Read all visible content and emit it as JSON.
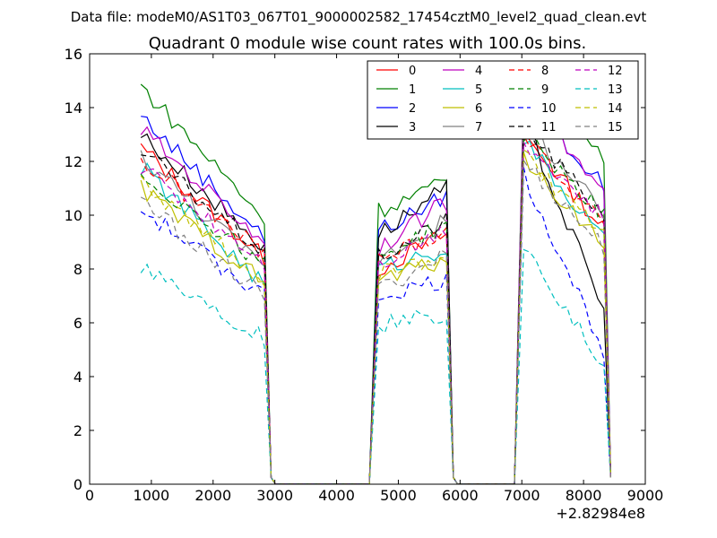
{
  "chart_data": {
    "type": "line",
    "suptitle": "Data file: modeM0/AS1T03_067T01_9000002582_17454cztM0_level2_quad_clean.evt",
    "title": "Quadrant 0 module wise count rates with 100.0s bins.",
    "xlabel": "",
    "ylabel": "",
    "x_offset_label": "+2.82984e8",
    "xlim": [
      0,
      9000
    ],
    "ylim": [
      0,
      16
    ],
    "x_ticks": [
      "0",
      "1000",
      "2000",
      "3000",
      "4000",
      "5000",
      "6000",
      "7000",
      "8000",
      "9000"
    ],
    "y_ticks": [
      "0",
      "2",
      "4",
      "6",
      "8",
      "10",
      "12",
      "14",
      "16"
    ],
    "grid": false,
    "legend_position": "top-right",
    "legend_columns": 4,
    "series": [
      {
        "name": "0",
        "color": "#ff0000",
        "dash": "solid",
        "segs": [
          {
            "x0": 830,
            "x1": 2830,
            "a": 12.5,
            "b": 8.4
          },
          {
            "x0": 4680,
            "x1": 5780,
            "a": 8.0,
            "b": 9.3
          },
          {
            "x0": 7030,
            "x1": 8330,
            "a": 13.0,
            "b": 9.5
          }
        ]
      },
      {
        "name": "1",
        "color": "#008000",
        "dash": "solid",
        "segs": [
          {
            "x0": 830,
            "x1": 2830,
            "a": 14.8,
            "b": 9.9
          },
          {
            "x0": 4680,
            "x1": 5780,
            "a": 10.2,
            "b": 11.2
          },
          {
            "x0": 7030,
            "x1": 8330,
            "a": 15.0,
            "b": 12.2
          }
        ]
      },
      {
        "name": "2",
        "color": "#0000ff",
        "dash": "solid",
        "segs": [
          {
            "x0": 830,
            "x1": 2830,
            "a": 13.7,
            "b": 9.2
          },
          {
            "x0": 4680,
            "x1": 5780,
            "a": 9.4,
            "b": 10.7
          },
          {
            "x0": 7030,
            "x1": 8330,
            "a": 14.5,
            "b": 11.0
          }
        ]
      },
      {
        "name": "3",
        "color": "#000000",
        "dash": "solid",
        "segs": [
          {
            "x0": 830,
            "x1": 2830,
            "a": 13.0,
            "b": 8.8
          },
          {
            "x0": 4680,
            "x1": 5780,
            "a": 9.3,
            "b": 11.0
          },
          {
            "x0": 7030,
            "x1": 8330,
            "a": 13.5,
            "b": 6.5
          }
        ]
      },
      {
        "name": "4",
        "color": "#bf00bf",
        "dash": "solid",
        "segs": [
          {
            "x0": 830,
            "x1": 2830,
            "a": 13.2,
            "b": 9.0
          },
          {
            "x0": 4680,
            "x1": 5780,
            "a": 8.8,
            "b": 10.5
          },
          {
            "x0": 7030,
            "x1": 8330,
            "a": 14.5,
            "b": 10.8
          }
        ]
      },
      {
        "name": "5",
        "color": "#00bfbf",
        "dash": "solid",
        "segs": [
          {
            "x0": 830,
            "x1": 2830,
            "a": 11.8,
            "b": 7.4
          },
          {
            "x0": 4680,
            "x1": 5780,
            "a": 8.0,
            "b": 8.8
          },
          {
            "x0": 7030,
            "x1": 8330,
            "a": 12.8,
            "b": 9.0
          }
        ]
      },
      {
        "name": "6",
        "color": "#bfbf00",
        "dash": "solid",
        "segs": [
          {
            "x0": 830,
            "x1": 2830,
            "a": 11.0,
            "b": 7.5
          },
          {
            "x0": 4680,
            "x1": 5780,
            "a": 7.6,
            "b": 8.4
          },
          {
            "x0": 7030,
            "x1": 8330,
            "a": 12.0,
            "b": 9.0
          }
        ]
      },
      {
        "name": "7",
        "color": "#808080",
        "dash": "solid",
        "segs": [
          {
            "x0": 830,
            "x1": 2830,
            "a": 12.2,
            "b": 8.0
          },
          {
            "x0": 4680,
            "x1": 5780,
            "a": 8.4,
            "b": 9.8
          },
          {
            "x0": 7030,
            "x1": 8330,
            "a": 13.5,
            "b": 10.0
          }
        ]
      },
      {
        "name": "8",
        "color": "#ff0000",
        "dash": "dashed",
        "segs": [
          {
            "x0": 830,
            "x1": 2830,
            "a": 12.0,
            "b": 8.6
          },
          {
            "x0": 4680,
            "x1": 5780,
            "a": 8.3,
            "b": 9.5
          },
          {
            "x0": 7030,
            "x1": 8330,
            "a": 13.0,
            "b": 9.6
          }
        ]
      },
      {
        "name": "9",
        "color": "#008000",
        "dash": "dashed",
        "segs": [
          {
            "x0": 830,
            "x1": 2830,
            "a": 11.5,
            "b": 8.2
          },
          {
            "x0": 4680,
            "x1": 5780,
            "a": 8.5,
            "b": 9.6
          },
          {
            "x0": 7030,
            "x1": 8330,
            "a": 13.0,
            "b": 10.0
          }
        ]
      },
      {
        "name": "10",
        "color": "#0000ff",
        "dash": "dashed",
        "segs": [
          {
            "x0": 830,
            "x1": 2830,
            "a": 10.2,
            "b": 7.0
          },
          {
            "x0": 4680,
            "x1": 5780,
            "a": 7.0,
            "b": 7.6
          },
          {
            "x0": 7030,
            "x1": 8330,
            "a": 11.5,
            "b": 5.0
          }
        ]
      },
      {
        "name": "11",
        "color": "#000000",
        "dash": "dashed",
        "segs": [
          {
            "x0": 830,
            "x1": 2830,
            "a": 12.4,
            "b": 8.6
          },
          {
            "x0": 4680,
            "x1": 5780,
            "a": 8.4,
            "b": 9.8
          },
          {
            "x0": 7030,
            "x1": 8330,
            "a": 13.3,
            "b": 10.0
          }
        ]
      },
      {
        "name": "12",
        "color": "#bf00bf",
        "dash": "dashed",
        "segs": [
          {
            "x0": 830,
            "x1": 2830,
            "a": 11.8,
            "b": 8.3
          },
          {
            "x0": 4680,
            "x1": 5780,
            "a": 8.2,
            "b": 9.5
          },
          {
            "x0": 7030,
            "x1": 8330,
            "a": 12.8,
            "b": 9.8
          }
        ]
      },
      {
        "name": "13",
        "color": "#00bfbf",
        "dash": "dashed",
        "segs": [
          {
            "x0": 830,
            "x1": 2830,
            "a": 8.2,
            "b": 5.4
          },
          {
            "x0": 4680,
            "x1": 5780,
            "a": 5.9,
            "b": 6.3
          },
          {
            "x0": 7030,
            "x1": 8330,
            "a": 9.0,
            "b": 4.3
          }
        ]
      },
      {
        "name": "14",
        "color": "#bfbf00",
        "dash": "dashed",
        "segs": [
          {
            "x0": 830,
            "x1": 2830,
            "a": 11.2,
            "b": 7.6
          },
          {
            "x0": 4680,
            "x1": 5780,
            "a": 7.8,
            "b": 8.5
          },
          {
            "x0": 7030,
            "x1": 8330,
            "a": 12.2,
            "b": 9.2
          }
        ]
      },
      {
        "name": "15",
        "color": "#808080",
        "dash": "dashed",
        "segs": [
          {
            "x0": 830,
            "x1": 2830,
            "a": 10.5,
            "b": 7.0
          },
          {
            "x0": 4680,
            "x1": 5780,
            "a": 7.2,
            "b": 8.6
          },
          {
            "x0": 7030,
            "x1": 8330,
            "a": 12.0,
            "b": 8.8
          }
        ]
      }
    ]
  }
}
